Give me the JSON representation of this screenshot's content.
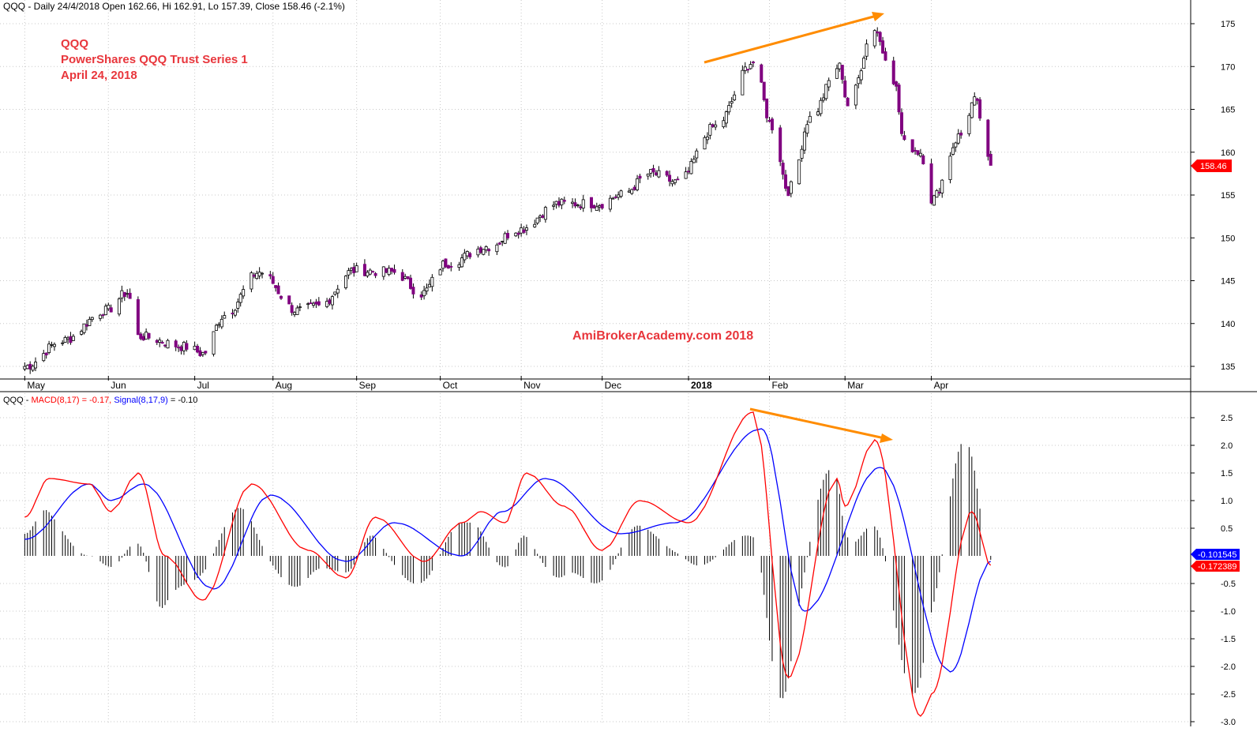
{
  "header": {
    "ohlc_line": "QQQ - Daily 24/4/2018 Open 162.66, Hi 162.91, Lo 157.39, Close 158.46 (-2.1%)"
  },
  "annotations": {
    "symbol": "QQQ",
    "name": "PowerShares QQQ Trust Series 1",
    "date": "April 24, 2018",
    "watermark": "AmiBrokerAcademy.com  2018"
  },
  "colors": {
    "up_candle": "#ffffff",
    "down_candle": "#800080",
    "macd_line": "#ff0000",
    "signal_line": "#0000ff",
    "histogram": "#000000",
    "annotation_text": "#e8363c",
    "trend_arrow": "#ff8c00",
    "grid": "#c8c8c8"
  },
  "price_axis": {
    "ticks": [
      "175",
      "170",
      "165",
      "160",
      "155",
      "150",
      "145",
      "140",
      "135"
    ],
    "last_close_label": "158.46"
  },
  "x_axis": {
    "months": [
      "May",
      "Jun",
      "Jul",
      "Aug",
      "Sep",
      "Oct",
      "Nov",
      "Dec",
      "2018",
      "Feb",
      "Mar",
      "Apr"
    ]
  },
  "macd_panel": {
    "prefix": "QQQ - ",
    "macd_label": "MACD(8,17) = -0.17,",
    "signal_label": "Signal(8,17,9)",
    "signal_value": " = -0.10",
    "ticks": [
      "2.5",
      "2.0",
      "1.5",
      "1.0",
      "0.5",
      "-0.5",
      "-1.0",
      "-1.5",
      "-2.0",
      "-2.5",
      "-3.0"
    ],
    "signal_last_label": "-0.101545",
    "macd_last_label": "-0.172389"
  },
  "chart_data": [
    {
      "type": "candlestick",
      "title": "QQQ - Daily 24/4/2018",
      "ylim": [
        133,
        177
      ],
      "grid": true,
      "series": [
        {
          "name": "QQQ",
          "close_points": [
            [
              "2017-05-01",
              135.0
            ],
            [
              "2017-05-15",
              138.0
            ],
            [
              "2017-05-31",
              141.5
            ],
            [
              "2017-06-08",
              143.6
            ],
            [
              "2017-06-12",
              138.5
            ],
            [
              "2017-06-30",
              137.3
            ],
            [
              "2017-07-06",
              136.5
            ],
            [
              "2017-07-14",
              141.0
            ],
            [
              "2017-07-27",
              146.0
            ],
            [
              "2017-08-10",
              141.5
            ],
            [
              "2017-08-18",
              142.0
            ],
            [
              "2017-08-31",
              146.2
            ],
            [
              "2017-09-15",
              146.0
            ],
            [
              "2017-09-25",
              143.5
            ],
            [
              "2017-10-04",
              147.0
            ],
            [
              "2017-10-20",
              149.0
            ],
            [
              "2017-10-31",
              151.0
            ],
            [
              "2017-11-15",
              154.0
            ],
            [
              "2017-11-30",
              154.0
            ],
            [
              "2017-12-08",
              155.0
            ],
            [
              "2017-12-19",
              157.5
            ],
            [
              "2017-12-29",
              156.5
            ],
            [
              "2018-01-12",
              163.0
            ],
            [
              "2018-01-26",
              170.5
            ],
            [
              "2018-02-02",
              163.0
            ],
            [
              "2018-02-08",
              155.5
            ],
            [
              "2018-02-09",
              156.0
            ],
            [
              "2018-02-16",
              164.0
            ],
            [
              "2018-02-27",
              170.0
            ],
            [
              "2018-03-02",
              165.5
            ],
            [
              "2018-03-12",
              174.5
            ],
            [
              "2018-03-16",
              171.3
            ],
            [
              "2018-03-19",
              168.5
            ],
            [
              "2018-03-23",
              161.0
            ],
            [
              "2018-03-29",
              160.0
            ],
            [
              "2018-04-02",
              154.5
            ],
            [
              "2018-04-13",
              162.0
            ],
            [
              "2018-04-18",
              166.0
            ],
            [
              "2018-04-24",
              158.46
            ]
          ]
        }
      ],
      "annotations": [
        "Upward trend line from late Jan 2018 highs to mid Mar 2018 highs"
      ]
    },
    {
      "type": "line",
      "title": "MACD(8,17) = -0.17, Signal(8,17,9) = -0.10",
      "ylim": [
        -3.0,
        2.8
      ],
      "grid": true,
      "series": [
        {
          "name": "MACD(8,17)",
          "points": [
            [
              "2017-05-01",
              0.7
            ],
            [
              "2017-05-10",
              1.4
            ],
            [
              "2017-05-25",
              1.3
            ],
            [
              "2017-06-02",
              0.8
            ],
            [
              "2017-06-12",
              1.5
            ],
            [
              "2017-06-22",
              0.0
            ],
            [
              "2017-07-06",
              -0.8
            ],
            [
              "2017-07-24",
              1.3
            ],
            [
              "2017-08-14",
              0.1
            ],
            [
              "2017-08-28",
              -0.4
            ],
            [
              "2017-09-08",
              0.7
            ],
            [
              "2017-09-26",
              -0.1
            ],
            [
              "2017-10-10",
              0.6
            ],
            [
              "2017-10-17",
              0.8
            ],
            [
              "2017-10-26",
              0.6
            ],
            [
              "2017-11-03",
              1.5
            ],
            [
              "2017-11-17",
              0.9
            ],
            [
              "2017-12-01",
              0.1
            ],
            [
              "2017-12-15",
              1.0
            ],
            [
              "2018-01-02",
              0.6
            ],
            [
              "2018-01-26",
              2.6
            ],
            [
              "2018-02-08",
              -2.2
            ],
            [
              "2018-02-26",
              1.4
            ],
            [
              "2018-03-01",
              0.9
            ],
            [
              "2018-03-12",
              2.1
            ],
            [
              "2018-03-29",
              -2.9
            ],
            [
              "2018-04-02",
              -2.5
            ],
            [
              "2018-04-17",
              0.8
            ],
            [
              "2018-04-24",
              -0.17
            ]
          ]
        },
        {
          "name": "Signal(8,17,9)",
          "points": [
            [
              "2017-05-01",
              0.3
            ],
            [
              "2017-05-25",
              1.3
            ],
            [
              "2017-06-02",
              1.0
            ],
            [
              "2017-06-14",
              1.3
            ],
            [
              "2017-07-10",
              -0.6
            ],
            [
              "2017-07-31",
              1.1
            ],
            [
              "2017-08-28",
              -0.1
            ],
            [
              "2017-09-15",
              0.6
            ],
            [
              "2017-10-10",
              0.0
            ],
            [
              "2017-10-25",
              0.8
            ],
            [
              "2017-11-10",
              1.4
            ],
            [
              "2017-12-08",
              0.4
            ],
            [
              "2017-12-28",
              0.6
            ],
            [
              "2018-01-29",
              2.3
            ],
            [
              "2018-02-14",
              -1.0
            ],
            [
              "2018-03-14",
              1.6
            ],
            [
              "2018-04-09",
              -2.1
            ],
            [
              "2018-04-24",
              -0.1
            ]
          ]
        },
        {
          "name": "Histogram",
          "type": "bar",
          "note": "MACD minus Signal, drawn as black vertical bars around zero"
        }
      ],
      "annotations": [
        "Downward trend line from late Jan 2018 MACD high to mid Mar 2018 MACD high (bearish divergence)"
      ]
    }
  ]
}
